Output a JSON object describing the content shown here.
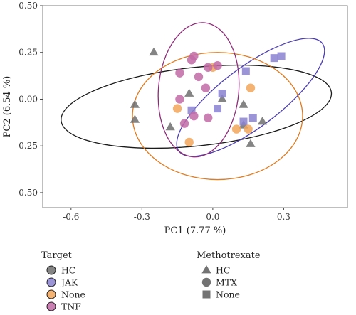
{
  "chart_data": {
    "type": "scatter",
    "xlabel": "PC1 (7.77 %)",
    "ylabel": "PC2 (6.54 %)",
    "xlim": [
      -0.72,
      0.57
    ],
    "ylim": [
      -0.58,
      0.5
    ],
    "x_ticks": [
      "-0.6",
      "-0.3",
      "0.0",
      "0.3"
    ],
    "x_tick_values": [
      -0.6,
      -0.3,
      0.0,
      0.3
    ],
    "y_ticks": [
      "0.50",
      "0.25",
      "0.00",
      "-0.25",
      "-0.50"
    ],
    "y_tick_values": [
      0.5,
      0.25,
      0.0,
      -0.25,
      -0.5
    ],
    "grid": false,
    "legend_placement": "bottom",
    "target_legend": {
      "title": "Target",
      "entries": [
        {
          "label": "HC",
          "color": "#6e6e6e"
        },
        {
          "label": "JAK",
          "color": "#8a83d0"
        },
        {
          "label": "None",
          "color": "#f2a55b"
        },
        {
          "label": "TNF",
          "color": "#c26aa6"
        }
      ]
    },
    "methotrexate_legend": {
      "title": "Methotrexate",
      "entries": [
        {
          "label": "HC",
          "shape": "triangle"
        },
        {
          "label": "MTX",
          "shape": "circle"
        },
        {
          "label": "None",
          "shape": "square"
        }
      ]
    },
    "ellipses": [
      {
        "target": "HC",
        "color": "#1a1a1a",
        "cx": -0.07,
        "cy": -0.04,
        "rx": 0.575,
        "ry": 0.21,
        "rotation": -6
      },
      {
        "target": "JAK",
        "color": "#4b3fb0",
        "cx": 0.16,
        "cy": 0.01,
        "rx": 0.38,
        "ry": 0.16,
        "rotation": -37
      },
      {
        "target": "None",
        "color": "#e07b1f",
        "cx": 0.02,
        "cy": -0.09,
        "rx": 0.36,
        "ry": 0.34,
        "rotation": 0
      },
      {
        "target": "TNF",
        "color": "#8e2b78",
        "cx": -0.06,
        "cy": 0.05,
        "rx": 0.17,
        "ry": 0.36,
        "rotation": 5
      }
    ],
    "points": [
      {
        "target": "HC",
        "methotrexate": "HC",
        "x": -0.25,
        "y": 0.25
      },
      {
        "target": "HC",
        "methotrexate": "HC",
        "x": -0.33,
        "y": -0.03
      },
      {
        "target": "HC",
        "methotrexate": "HC",
        "x": -0.33,
        "y": -0.11
      },
      {
        "target": "HC",
        "methotrexate": "HC",
        "x": -0.18,
        "y": -0.15
      },
      {
        "target": "HC",
        "methotrexate": "HC",
        "x": -0.1,
        "y": 0.03
      },
      {
        "target": "HC",
        "methotrexate": "HC",
        "x": 0.04,
        "y": 0.0
      },
      {
        "target": "HC",
        "methotrexate": "HC",
        "x": 0.13,
        "y": -0.03
      },
      {
        "target": "HC",
        "methotrexate": "HC",
        "x": 0.13,
        "y": -0.14
      },
      {
        "target": "HC",
        "methotrexate": "HC",
        "x": 0.21,
        "y": -0.12
      },
      {
        "target": "HC",
        "methotrexate": "HC",
        "x": 0.16,
        "y": -0.24
      },
      {
        "target": "JAK",
        "methotrexate": "None",
        "x": 0.26,
        "y": 0.22
      },
      {
        "target": "JAK",
        "methotrexate": "None",
        "x": 0.29,
        "y": 0.23
      },
      {
        "target": "JAK",
        "methotrexate": "None",
        "x": 0.14,
        "y": 0.15
      },
      {
        "target": "JAK",
        "methotrexate": "None",
        "x": 0.04,
        "y": 0.03
      },
      {
        "target": "JAK",
        "methotrexate": "None",
        "x": 0.02,
        "y": -0.05
      },
      {
        "target": "JAK",
        "methotrexate": "None",
        "x": -0.09,
        "y": -0.06
      },
      {
        "target": "JAK",
        "methotrexate": "None",
        "x": 0.13,
        "y": -0.12
      },
      {
        "target": "JAK",
        "methotrexate": "None",
        "x": 0.17,
        "y": -0.1
      },
      {
        "target": "None",
        "methotrexate": "MTX",
        "x": 0.0,
        "y": 0.17
      },
      {
        "target": "None",
        "methotrexate": "MTX",
        "x": 0.16,
        "y": 0.06
      },
      {
        "target": "None",
        "methotrexate": "MTX",
        "x": -0.15,
        "y": -0.05
      },
      {
        "target": "None",
        "methotrexate": "MTX",
        "x": 0.1,
        "y": -0.16
      },
      {
        "target": "None",
        "methotrexate": "MTX",
        "x": 0.15,
        "y": -0.16
      },
      {
        "target": "None",
        "methotrexate": "MTX",
        "x": -0.1,
        "y": -0.23
      },
      {
        "target": "TNF",
        "methotrexate": "MTX",
        "x": -0.08,
        "y": 0.23
      },
      {
        "target": "TNF",
        "methotrexate": "MTX",
        "x": -0.02,
        "y": 0.17
      },
      {
        "target": "TNF",
        "methotrexate": "MTX",
        "x": 0.02,
        "y": 0.18
      },
      {
        "target": "TNF",
        "methotrexate": "MTX",
        "x": -0.14,
        "y": 0.14
      },
      {
        "target": "TNF",
        "methotrexate": "MTX",
        "x": -0.06,
        "y": 0.12
      },
      {
        "target": "TNF",
        "methotrexate": "MTX",
        "x": -0.03,
        "y": 0.06
      },
      {
        "target": "TNF",
        "methotrexate": "MTX",
        "x": -0.14,
        "y": 0.0
      },
      {
        "target": "TNF",
        "methotrexate": "MTX",
        "x": -0.08,
        "y": -0.09
      },
      {
        "target": "TNF",
        "methotrexate": "MTX",
        "x": -0.02,
        "y": -0.1
      },
      {
        "target": "TNF",
        "methotrexate": "MTX",
        "x": -0.12,
        "y": -0.13
      },
      {
        "target": "TNF",
        "methotrexate": "MTX",
        "x": -0.09,
        "y": 0.21
      }
    ]
  }
}
